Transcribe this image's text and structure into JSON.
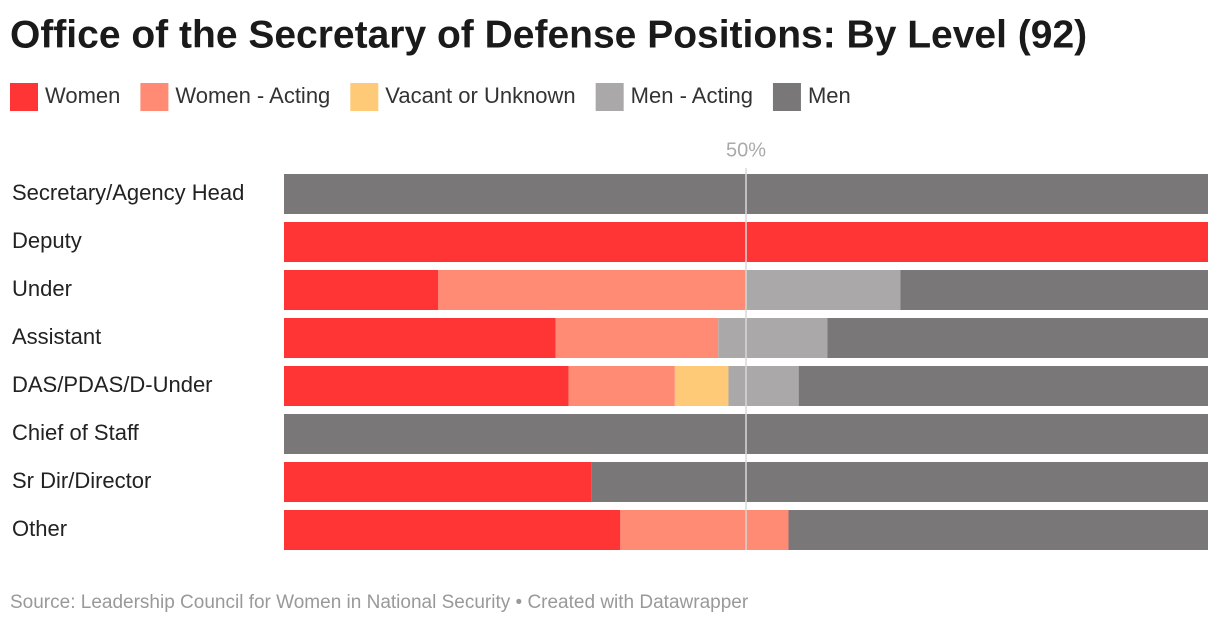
{
  "chart_data": {
    "type": "stacked-bar-horizontal",
    "title": "Office of the Secretary of Defense Positions: By Level (92)",
    "categories": [
      "Secretary/Agency Head",
      "Deputy",
      "Under",
      "Assistant",
      "DAS/PDAS/D-Under",
      "Chief of Staff",
      "Sr Dir/Director",
      "Other"
    ],
    "series": [
      {
        "name": "Women",
        "color": "#ff3434",
        "values": [
          0,
          100,
          16.7,
          29.4,
          30.8,
          0,
          33.3,
          36.4
        ]
      },
      {
        "name": "Women - Acting",
        "color": "#ff8b74",
        "values": [
          0,
          0,
          33.3,
          17.6,
          11.5,
          0,
          0,
          18.2
        ]
      },
      {
        "name": "Vacant or Unknown",
        "color": "#ffca78",
        "values": [
          0,
          0,
          0,
          0,
          5.8,
          0,
          0,
          0
        ]
      },
      {
        "name": "Men - Acting",
        "color": "#aaa8a8",
        "values": [
          0,
          0,
          16.7,
          11.8,
          7.6,
          0,
          0,
          0
        ]
      },
      {
        "name": "Men",
        "color": "#7a7778",
        "values": [
          100,
          0,
          33.3,
          41.2,
          44.3,
          100,
          66.7,
          45.4
        ]
      }
    ],
    "xlim": [
      0,
      100
    ],
    "xticks": [
      {
        "value": 50,
        "label": "50%"
      }
    ],
    "grid": true,
    "footer": "Source: Leadership Council for Women in National Security • Created with Datawrapper"
  }
}
